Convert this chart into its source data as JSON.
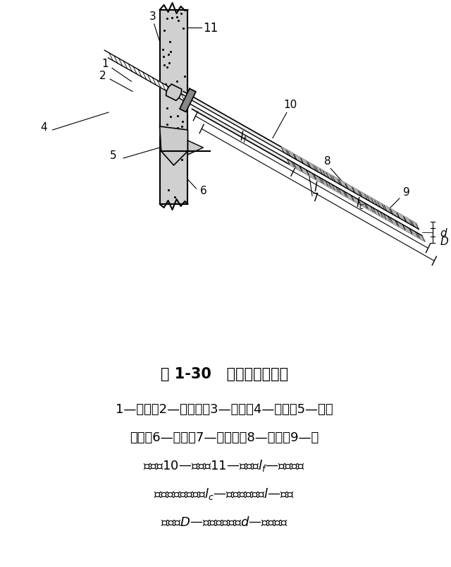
{
  "title": "图 1-30   土层锚杆构造图",
  "caption_lines": [
    "1—锚具；2—承压板；3—横梁；4—台座；5—承托",
    "支架；6—套管；7—钢拉杆；8—砂浆；9—锚",
    "固体；10—钻孔；11—挡墙；$l_f$—非锚固段",
    "（自由段）长度；$l_c$—锚固段长度；$l$—锚杆",
    "全长；$D$—锚固体直径；$d$—拉杆直径"
  ],
  "bg_color": "#ffffff",
  "line_color": "#000000"
}
